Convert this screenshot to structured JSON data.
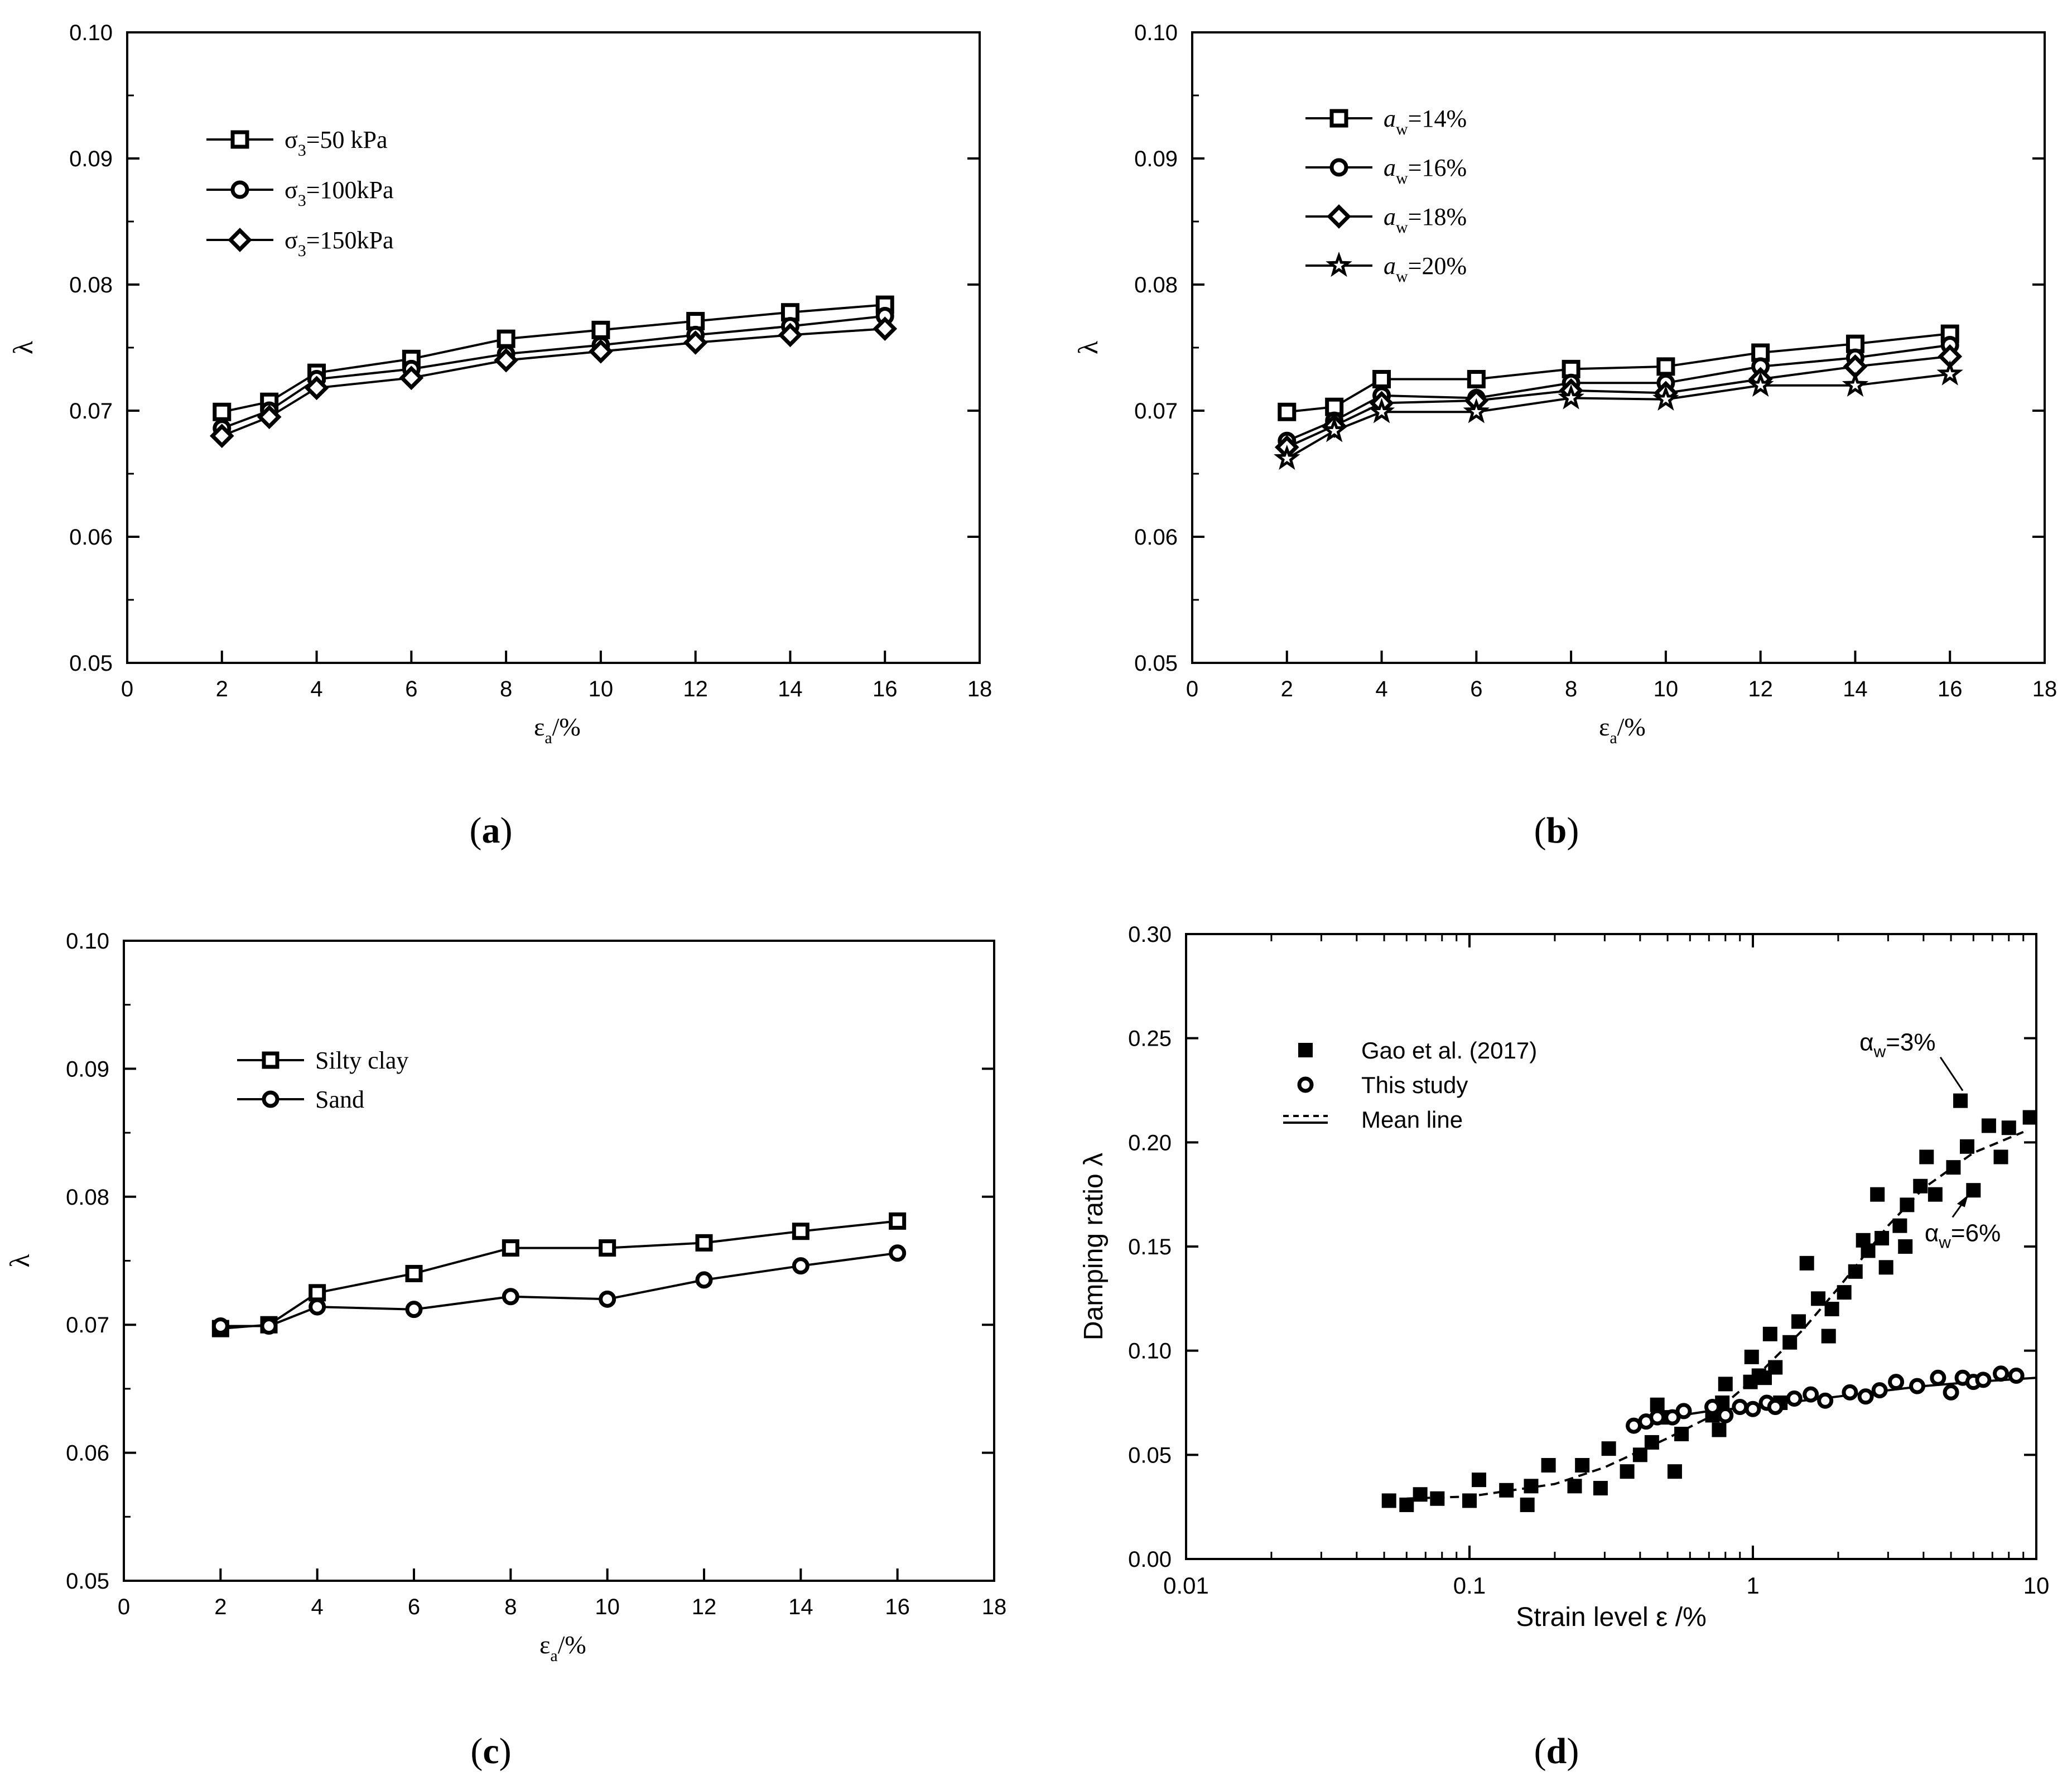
{
  "chart_data": [
    {
      "id": "a",
      "type": "line",
      "panel_label": "(a)",
      "xlabel": "ε",
      "xlabel_sub": "a",
      "xlabel_suffix": "/%",
      "ylabel": "λ",
      "xlim": [
        0,
        18
      ],
      "ylim": [
        0.05,
        0.1
      ],
      "xticks": [
        "0",
        "2",
        "4",
        "6",
        "8",
        "10",
        "12",
        "14",
        "16",
        "18"
      ],
      "yticks": [
        "0.05",
        "0.06",
        "0.07",
        "0.08",
        "0.09",
        "0.10"
      ],
      "x": [
        2,
        3,
        4,
        6,
        8,
        10,
        12,
        14,
        16
      ],
      "series": [
        {
          "name": "σ",
          "sub": "3",
          "suffix": "=50  kPa",
          "marker": "square",
          "values": [
            0.0699,
            0.0707,
            0.073,
            0.0741,
            0.0757,
            0.0764,
            0.0771,
            0.0778,
            0.0784
          ]
        },
        {
          "name": "σ",
          "sub": "3",
          "suffix": "=100kPa",
          "marker": "circle",
          "values": [
            0.0686,
            0.07,
            0.0725,
            0.0733,
            0.0745,
            0.0752,
            0.076,
            0.0767,
            0.0775
          ]
        },
        {
          "name": "σ",
          "sub": "3",
          "suffix": "=150kPa",
          "marker": "diamond",
          "values": [
            0.068,
            0.0695,
            0.0718,
            0.0726,
            0.074,
            0.0747,
            0.0754,
            0.076,
            0.0765
          ]
        }
      ]
    },
    {
      "id": "b",
      "type": "line",
      "panel_label": "(b)",
      "xlabel": "ε",
      "xlabel_sub": "a",
      "xlabel_suffix": "/%",
      "ylabel": "λ",
      "xlim": [
        0,
        18
      ],
      "ylim": [
        0.05,
        0.1
      ],
      "xticks": [
        "0",
        "2",
        "4",
        "6",
        "8",
        "10",
        "12",
        "14",
        "16",
        "18"
      ],
      "yticks": [
        "0.05",
        "0.06",
        "0.07",
        "0.08",
        "0.09",
        "0.10"
      ],
      "x": [
        2,
        3,
        4,
        6,
        8,
        10,
        12,
        14,
        16
      ],
      "series": [
        {
          "name": "a",
          "sub": "w",
          "suffix": "=14%",
          "marker": "square",
          "values": [
            0.0699,
            0.0703,
            0.0725,
            0.0725,
            0.0733,
            0.0735,
            0.0746,
            0.0753,
            0.0761
          ]
        },
        {
          "name": "a",
          "sub": "w",
          "suffix": "=16%",
          "marker": "circle",
          "values": [
            0.0676,
            0.0692,
            0.0712,
            0.071,
            0.0722,
            0.0722,
            0.0735,
            0.0742,
            0.0752
          ]
        },
        {
          "name": "a",
          "sub": "w",
          "suffix": "=18%",
          "marker": "diamond",
          "values": [
            0.0671,
            0.0688,
            0.0706,
            0.0708,
            0.0716,
            0.0714,
            0.0725,
            0.0735,
            0.0743
          ]
        },
        {
          "name": "a",
          "sub": "w",
          "suffix": "=20%",
          "marker": "star",
          "values": [
            0.0662,
            0.0684,
            0.0699,
            0.0699,
            0.071,
            0.0709,
            0.072,
            0.072,
            0.0729
          ]
        }
      ]
    },
    {
      "id": "c",
      "type": "line",
      "panel_label": "(c)",
      "xlabel": "ε",
      "xlabel_sub": "a",
      "xlabel_suffix": "/%",
      "ylabel": "λ",
      "xlim": [
        0,
        18
      ],
      "ylim": [
        0.05,
        0.1
      ],
      "xticks": [
        "0",
        "2",
        "4",
        "6",
        "8",
        "10",
        "12",
        "14",
        "16",
        "18"
      ],
      "yticks": [
        "0.05",
        "0.06",
        "0.07",
        "0.08",
        "0.09",
        "0.10"
      ],
      "x": [
        2,
        3,
        4,
        6,
        8,
        10,
        12,
        14,
        16
      ],
      "series": [
        {
          "name": "Silty clay",
          "sub": "",
          "suffix": "",
          "marker": "square",
          "values": [
            0.0697,
            0.07,
            0.0725,
            0.074,
            0.076,
            0.076,
            0.0764,
            0.0773,
            0.0781
          ]
        },
        {
          "name": "Sand",
          "sub": "",
          "suffix": "",
          "marker": "circle",
          "values": [
            0.0699,
            0.0699,
            0.0714,
            0.0712,
            0.0722,
            0.072,
            0.0735,
            0.0746,
            0.0756
          ]
        }
      ]
    },
    {
      "id": "d",
      "type": "scatter",
      "panel_label": "(d)",
      "xscale": "log",
      "xlabel": "Strain level ε /%",
      "ylabel": "Damping ratio λ",
      "xlim": [
        0.01,
        10
      ],
      "ylim": [
        0,
        0.3
      ],
      "xticks": [
        "0.01",
        "0.1",
        "1",
        "10"
      ],
      "yticks": [
        "0.00",
        "0.05",
        "0.10",
        "0.15",
        "0.20",
        "0.25",
        "0.30"
      ],
      "legend": [
        {
          "name": "Gao et al. (2017)",
          "marker": "filled-square"
        },
        {
          "name": "This study",
          "marker": "circle"
        },
        {
          "name": "Mean line",
          "marker": "line"
        }
      ],
      "annotations": [
        {
          "text": "α",
          "sub": "w",
          "suffix": "=3%",
          "x": 5.5,
          "y": 0.22
        },
        {
          "text": "α",
          "sub": "w",
          "suffix": "=6%",
          "x": 5.8,
          "y": 0.178
        }
      ],
      "series": [
        {
          "name": "Gao et al. (2017)",
          "marker": "filled-square",
          "points": [
            [
              0.052,
              0.028
            ],
            [
              0.06,
              0.026
            ],
            [
              0.067,
              0.031
            ],
            [
              0.077,
              0.029
            ],
            [
              0.1,
              0.028
            ],
            [
              0.108,
              0.038
            ],
            [
              0.135,
              0.033
            ],
            [
              0.16,
              0.026
            ],
            [
              0.165,
              0.035
            ],
            [
              0.19,
              0.045
            ],
            [
              0.235,
              0.035
            ],
            [
              0.25,
              0.045
            ],
            [
              0.29,
              0.034
            ],
            [
              0.31,
              0.053
            ],
            [
              0.36,
              0.042
            ],
            [
              0.4,
              0.05
            ],
            [
              0.44,
              0.056
            ],
            [
              0.46,
              0.074
            ],
            [
              0.5,
              0.068
            ],
            [
              0.53,
              0.042
            ],
            [
              0.56,
              0.06
            ],
            [
              0.72,
              0.069
            ],
            [
              0.74,
              0.072
            ],
            [
              0.76,
              0.062
            ],
            [
              0.78,
              0.075
            ],
            [
              0.8,
              0.084
            ],
            [
              0.98,
              0.085
            ],
            [
              0.99,
              0.097
            ],
            [
              1.05,
              0.088
            ],
            [
              1.1,
              0.087
            ],
            [
              1.15,
              0.108
            ],
            [
              1.2,
              0.092
            ],
            [
              1.25,
              0.075
            ],
            [
              1.35,
              0.104
            ],
            [
              1.45,
              0.114
            ],
            [
              1.55,
              0.142
            ],
            [
              1.7,
              0.125
            ],
            [
              1.85,
              0.107
            ],
            [
              1.9,
              0.12
            ],
            [
              2.1,
              0.128
            ],
            [
              2.3,
              0.138
            ],
            [
              2.45,
              0.153
            ],
            [
              2.55,
              0.148
            ],
            [
              2.75,
              0.175
            ],
            [
              2.85,
              0.154
            ],
            [
              2.95,
              0.14
            ],
            [
              3.3,
              0.16
            ],
            [
              3.45,
              0.15
            ],
            [
              3.5,
              0.17
            ],
            [
              3.9,
              0.179
            ],
            [
              4.1,
              0.193
            ],
            [
              4.4,
              0.175
            ],
            [
              5.1,
              0.188
            ],
            [
              5.4,
              0.22
            ],
            [
              5.7,
              0.198
            ],
            [
              6.0,
              0.177
            ],
            [
              6.8,
              0.208
            ],
            [
              7.5,
              0.193
            ],
            [
              8.0,
              0.207
            ],
            [
              9.5,
              0.212
            ]
          ]
        },
        {
          "name": "This study",
          "marker": "circle",
          "points": [
            [
              0.38,
              0.064
            ],
            [
              0.42,
              0.066
            ],
            [
              0.46,
              0.068
            ],
            [
              0.52,
              0.068
            ],
            [
              0.57,
              0.071
            ],
            [
              0.72,
              0.073
            ],
            [
              0.8,
              0.069
            ],
            [
              0.9,
              0.073
            ],
            [
              1.0,
              0.072
            ],
            [
              1.12,
              0.075
            ],
            [
              1.2,
              0.073
            ],
            [
              1.4,
              0.077
            ],
            [
              1.6,
              0.079
            ],
            [
              1.8,
              0.076
            ],
            [
              2.2,
              0.08
            ],
            [
              2.5,
              0.078
            ],
            [
              2.8,
              0.081
            ],
            [
              3.2,
              0.085
            ],
            [
              3.8,
              0.083
            ],
            [
              4.5,
              0.087
            ],
            [
              5.0,
              0.08
            ],
            [
              5.5,
              0.087
            ],
            [
              6.0,
              0.085
            ],
            [
              6.5,
              0.086
            ],
            [
              7.5,
              0.089
            ],
            [
              8.5,
              0.088
            ]
          ]
        },
        {
          "name": "Mean line (Gao et al.)",
          "marker": "none",
          "style": "dashed",
          "points": [
            [
              0.06,
              0.029
            ],
            [
              0.1,
              0.03
            ],
            [
              0.2,
              0.036
            ],
            [
              0.3,
              0.044
            ],
            [
              0.5,
              0.058
            ],
            [
              0.7,
              0.068
            ],
            [
              1.0,
              0.086
            ],
            [
              1.5,
              0.11
            ],
            [
              2.0,
              0.13
            ],
            [
              3.0,
              0.16
            ],
            [
              4.0,
              0.178
            ],
            [
              6.0,
              0.195
            ],
            [
              9.0,
              0.205
            ]
          ]
        },
        {
          "name": "Mean line (This study)",
          "marker": "none",
          "style": "solid",
          "points": [
            [
              0.38,
              0.064
            ],
            [
              0.5,
              0.068
            ],
            [
              0.7,
              0.071
            ],
            [
              1.0,
              0.073
            ],
            [
              1.5,
              0.076
            ],
            [
              2.0,
              0.078
            ],
            [
              3.0,
              0.081
            ],
            [
              4.0,
              0.083
            ],
            [
              6.0,
              0.085
            ],
            [
              10,
              0.087
            ]
          ]
        }
      ]
    }
  ]
}
